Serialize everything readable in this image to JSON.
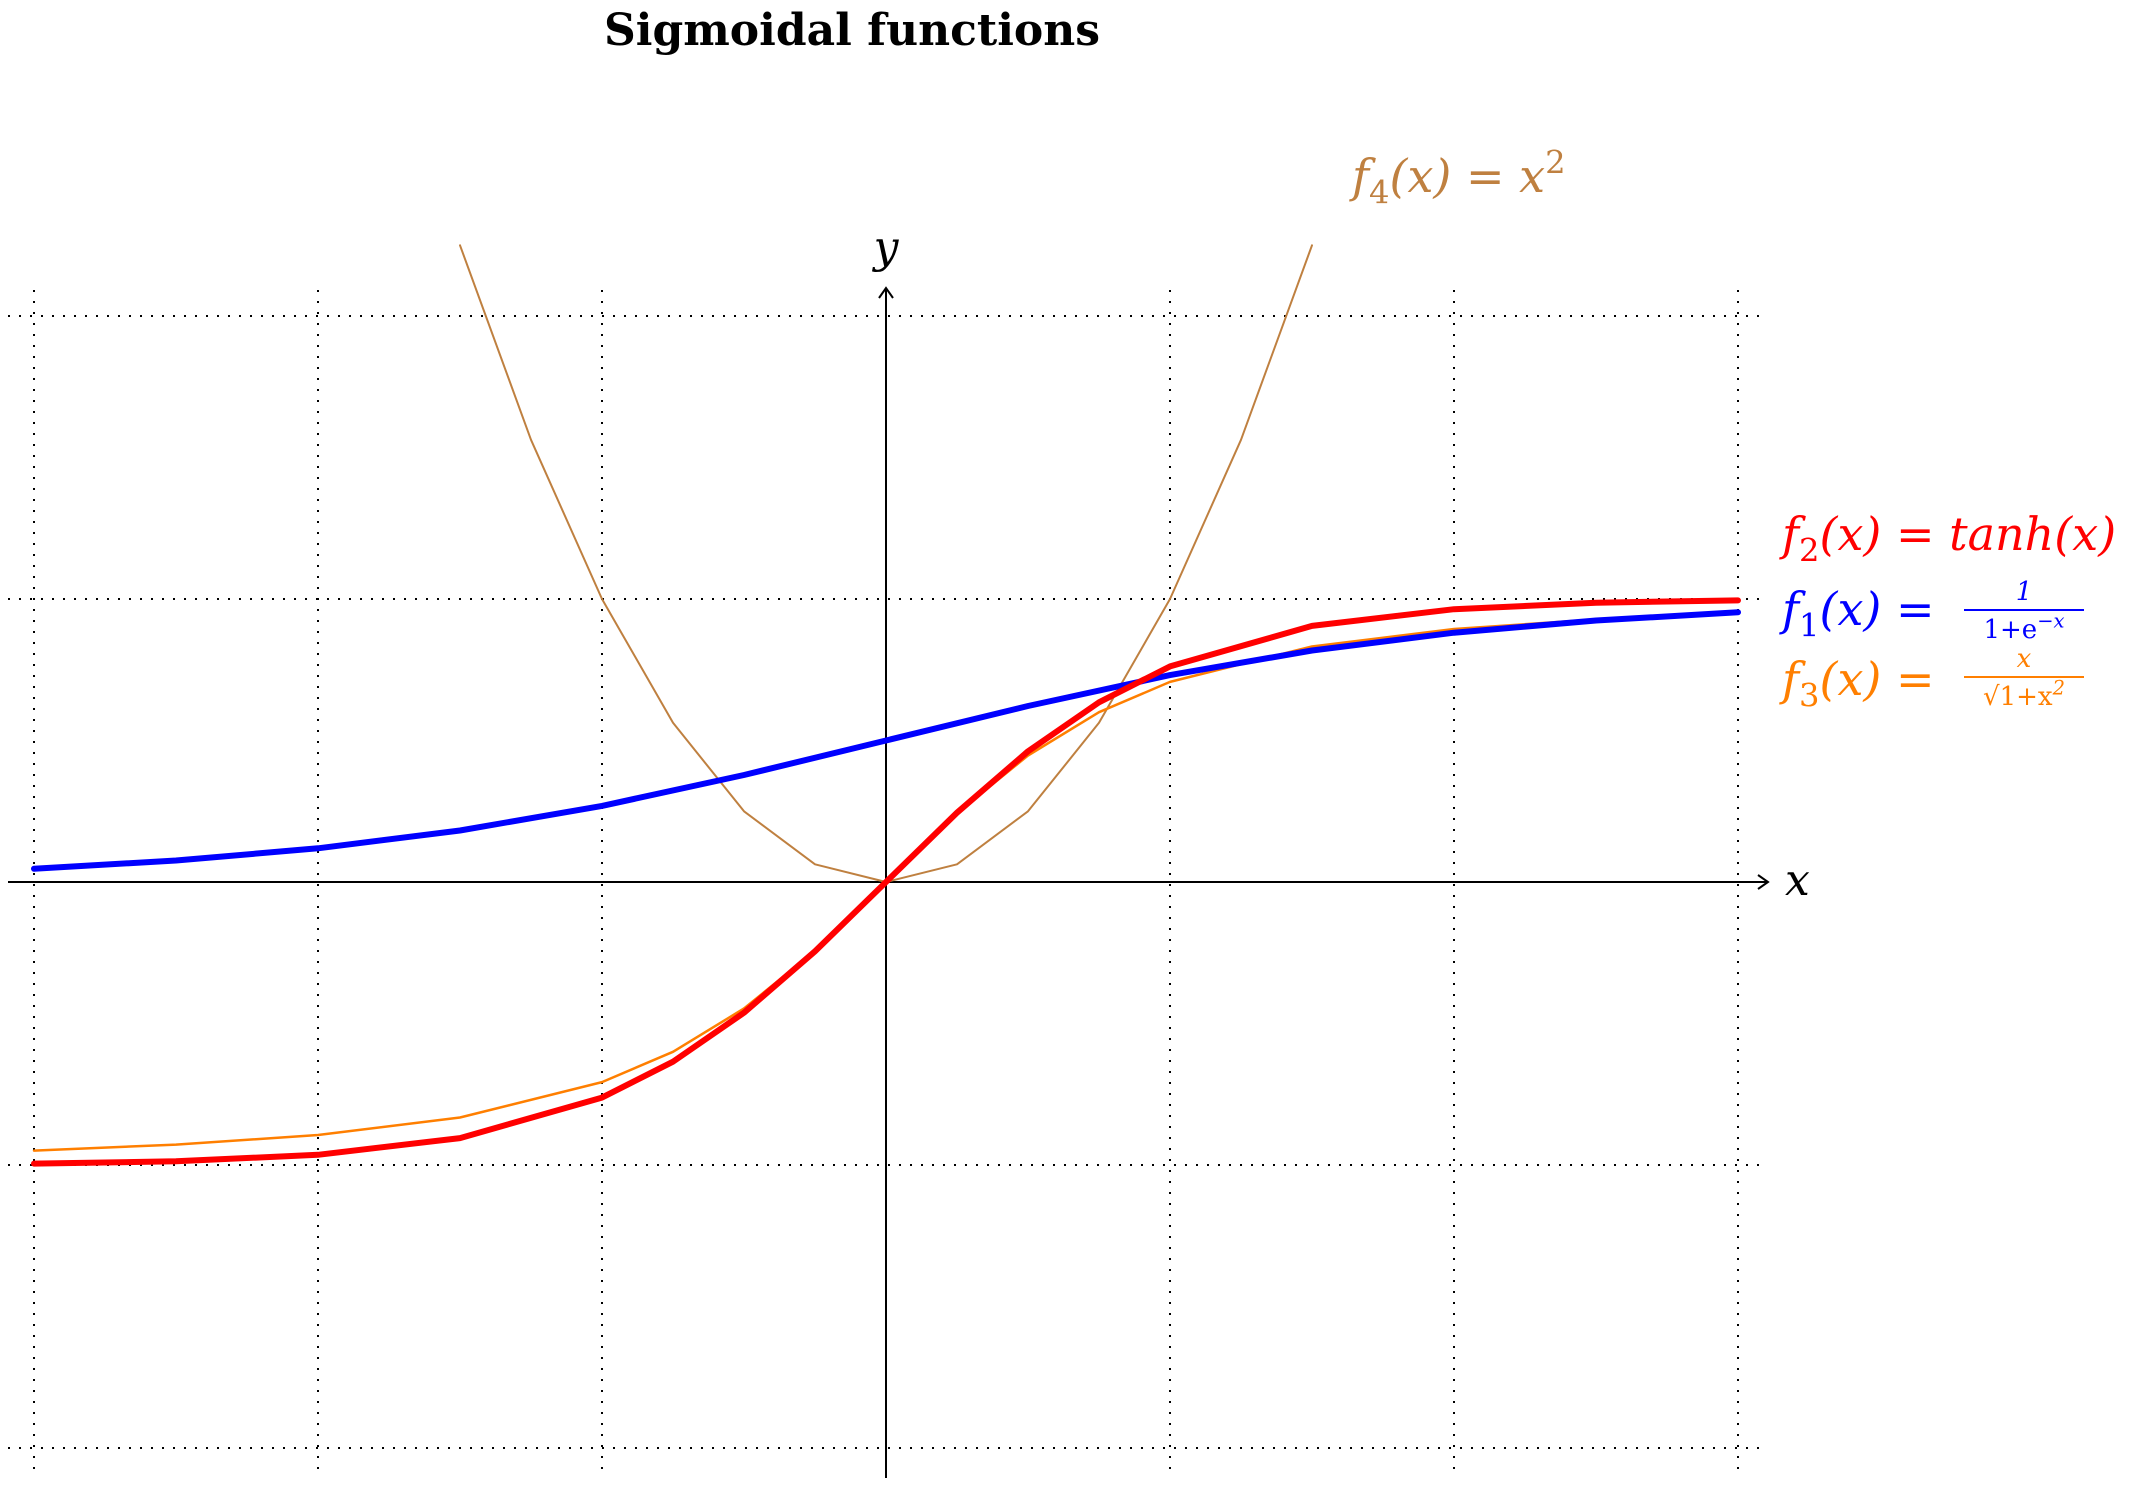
{
  "chart_data": {
    "type": "line",
    "title": "Sigmoidal functions",
    "xlabel": "x",
    "ylabel": "y",
    "xlim": [
      -3.1,
      3.1
    ],
    "ylim": [
      -2.1,
      2.1
    ],
    "grid": true,
    "grid_style": "dotted",
    "x_grid": [
      -3,
      -2,
      -1,
      0,
      1,
      2,
      3
    ],
    "y_grid": [
      -2,
      -1,
      0,
      1,
      2
    ],
    "legend_placement": "right",
    "series": [
      {
        "name": "f1(x) = 1/(1+e^(-x))",
        "label": {
          "fn": "f",
          "sub": "1",
          "arg": "(x) =",
          "num": "1",
          "den": "1+e",
          "den_sup": "−x"
        },
        "color": "#0000ff",
        "x": [
          -3.0,
          -2.5,
          -2.0,
          -1.5,
          -1.0,
          -0.5,
          0.0,
          0.5,
          1.0,
          1.5,
          2.0,
          2.5,
          3.0
        ],
        "values": [
          0.047,
          0.076,
          0.119,
          0.182,
          0.269,
          0.378,
          0.5,
          0.622,
          0.731,
          0.818,
          0.881,
          0.924,
          0.953
        ]
      },
      {
        "name": "f2(x) = tanh(x)",
        "label": {
          "fn": "f",
          "sub": "2",
          "arg": "(x) = tanh(x)"
        },
        "color": "#ff0000",
        "x": [
          -3.0,
          -2.5,
          -2.0,
          -1.5,
          -1.0,
          -0.75,
          -0.5,
          -0.25,
          0.0,
          0.25,
          0.5,
          0.75,
          1.0,
          1.5,
          2.0,
          2.5,
          3.0
        ],
        "values": [
          -0.995,
          -0.987,
          -0.964,
          -0.905,
          -0.762,
          -0.635,
          -0.462,
          -0.245,
          0.0,
          0.245,
          0.462,
          0.635,
          0.762,
          0.905,
          0.964,
          0.987,
          0.995
        ]
      },
      {
        "name": "f3(x) = x/sqrt(1+x^2)",
        "label": {
          "fn": "f",
          "sub": "3",
          "arg": "(x) =",
          "num": "x",
          "den": "√1+x",
          "den_sup": "2"
        },
        "color": "#ff7f00",
        "x": [
          -3.0,
          -2.5,
          -2.0,
          -1.5,
          -1.0,
          -0.75,
          -0.5,
          -0.25,
          0.0,
          0.25,
          0.5,
          0.75,
          1.0,
          1.5,
          2.0,
          2.5,
          3.0
        ],
        "values": [
          -0.949,
          -0.928,
          -0.894,
          -0.832,
          -0.707,
          -0.6,
          -0.447,
          -0.243,
          0.0,
          0.243,
          0.447,
          0.6,
          0.707,
          0.832,
          0.894,
          0.928,
          0.949
        ]
      },
      {
        "name": "f4(x) = x^2",
        "label": {
          "fn": "f",
          "sub": "4",
          "arg": "(x) = x",
          "sup": "2"
        },
        "color": "#bf8040",
        "x": [
          -1.5,
          -1.25,
          -1.0,
          -0.75,
          -0.5,
          -0.25,
          0.0,
          0.25,
          0.5,
          0.75,
          1.0,
          1.25,
          1.5
        ],
        "values": [
          2.25,
          1.5625,
          1.0,
          0.5625,
          0.25,
          0.0625,
          0.0,
          0.0625,
          0.25,
          0.5625,
          1.0,
          1.5625,
          2.25
        ]
      }
    ]
  }
}
